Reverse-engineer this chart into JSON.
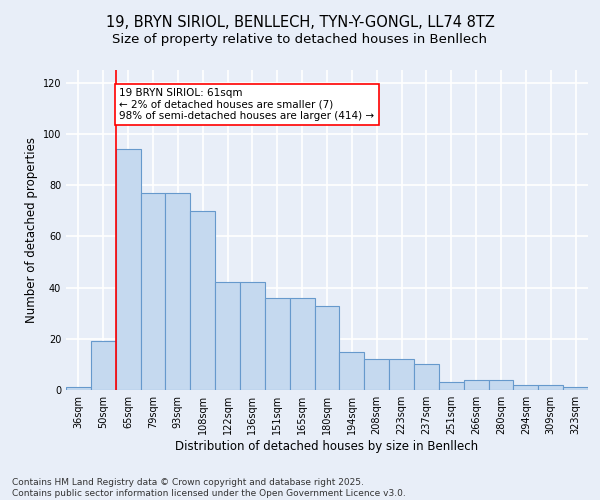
{
  "title_line1": "19, BRYN SIRIOL, BENLLECH, TYN-Y-GONGL, LL74 8TZ",
  "title_line2": "Size of property relative to detached houses in Benllech",
  "xlabel": "Distribution of detached houses by size in Benllech",
  "ylabel": "Number of detached properties",
  "categories": [
    "36sqm",
    "50sqm",
    "65sqm",
    "79sqm",
    "93sqm",
    "108sqm",
    "122sqm",
    "136sqm",
    "151sqm",
    "165sqm",
    "180sqm",
    "194sqm",
    "208sqm",
    "223sqm",
    "237sqm",
    "251sqm",
    "266sqm",
    "280sqm",
    "294sqm",
    "309sqm",
    "323sqm"
  ],
  "values": [
    1,
    19,
    94,
    77,
    77,
    70,
    42,
    42,
    36,
    36,
    33,
    15,
    12,
    12,
    10,
    3,
    4,
    4,
    2,
    2,
    1
  ],
  "bar_color": "#c5d9ef",
  "bar_edge_color": "#6699cc",
  "red_line_x": 1.5,
  "annotation_text": "19 BRYN SIRIOL: 61sqm\n← 2% of detached houses are smaller (7)\n98% of semi-detached houses are larger (414) →",
  "annotation_box_color": "white",
  "annotation_box_edge_color": "red",
  "ylim": [
    0,
    125
  ],
  "yticks": [
    0,
    20,
    40,
    60,
    80,
    100,
    120
  ],
  "footer_line1": "Contains HM Land Registry data © Crown copyright and database right 2025.",
  "footer_line2": "Contains public sector information licensed under the Open Government Licence v3.0.",
  "background_color": "#e8eef8",
  "grid_color": "white",
  "title_fontsize": 10.5,
  "subtitle_fontsize": 9.5,
  "axis_label_fontsize": 8.5,
  "tick_fontsize": 7,
  "footer_fontsize": 6.5,
  "annotation_fontsize": 7.5
}
